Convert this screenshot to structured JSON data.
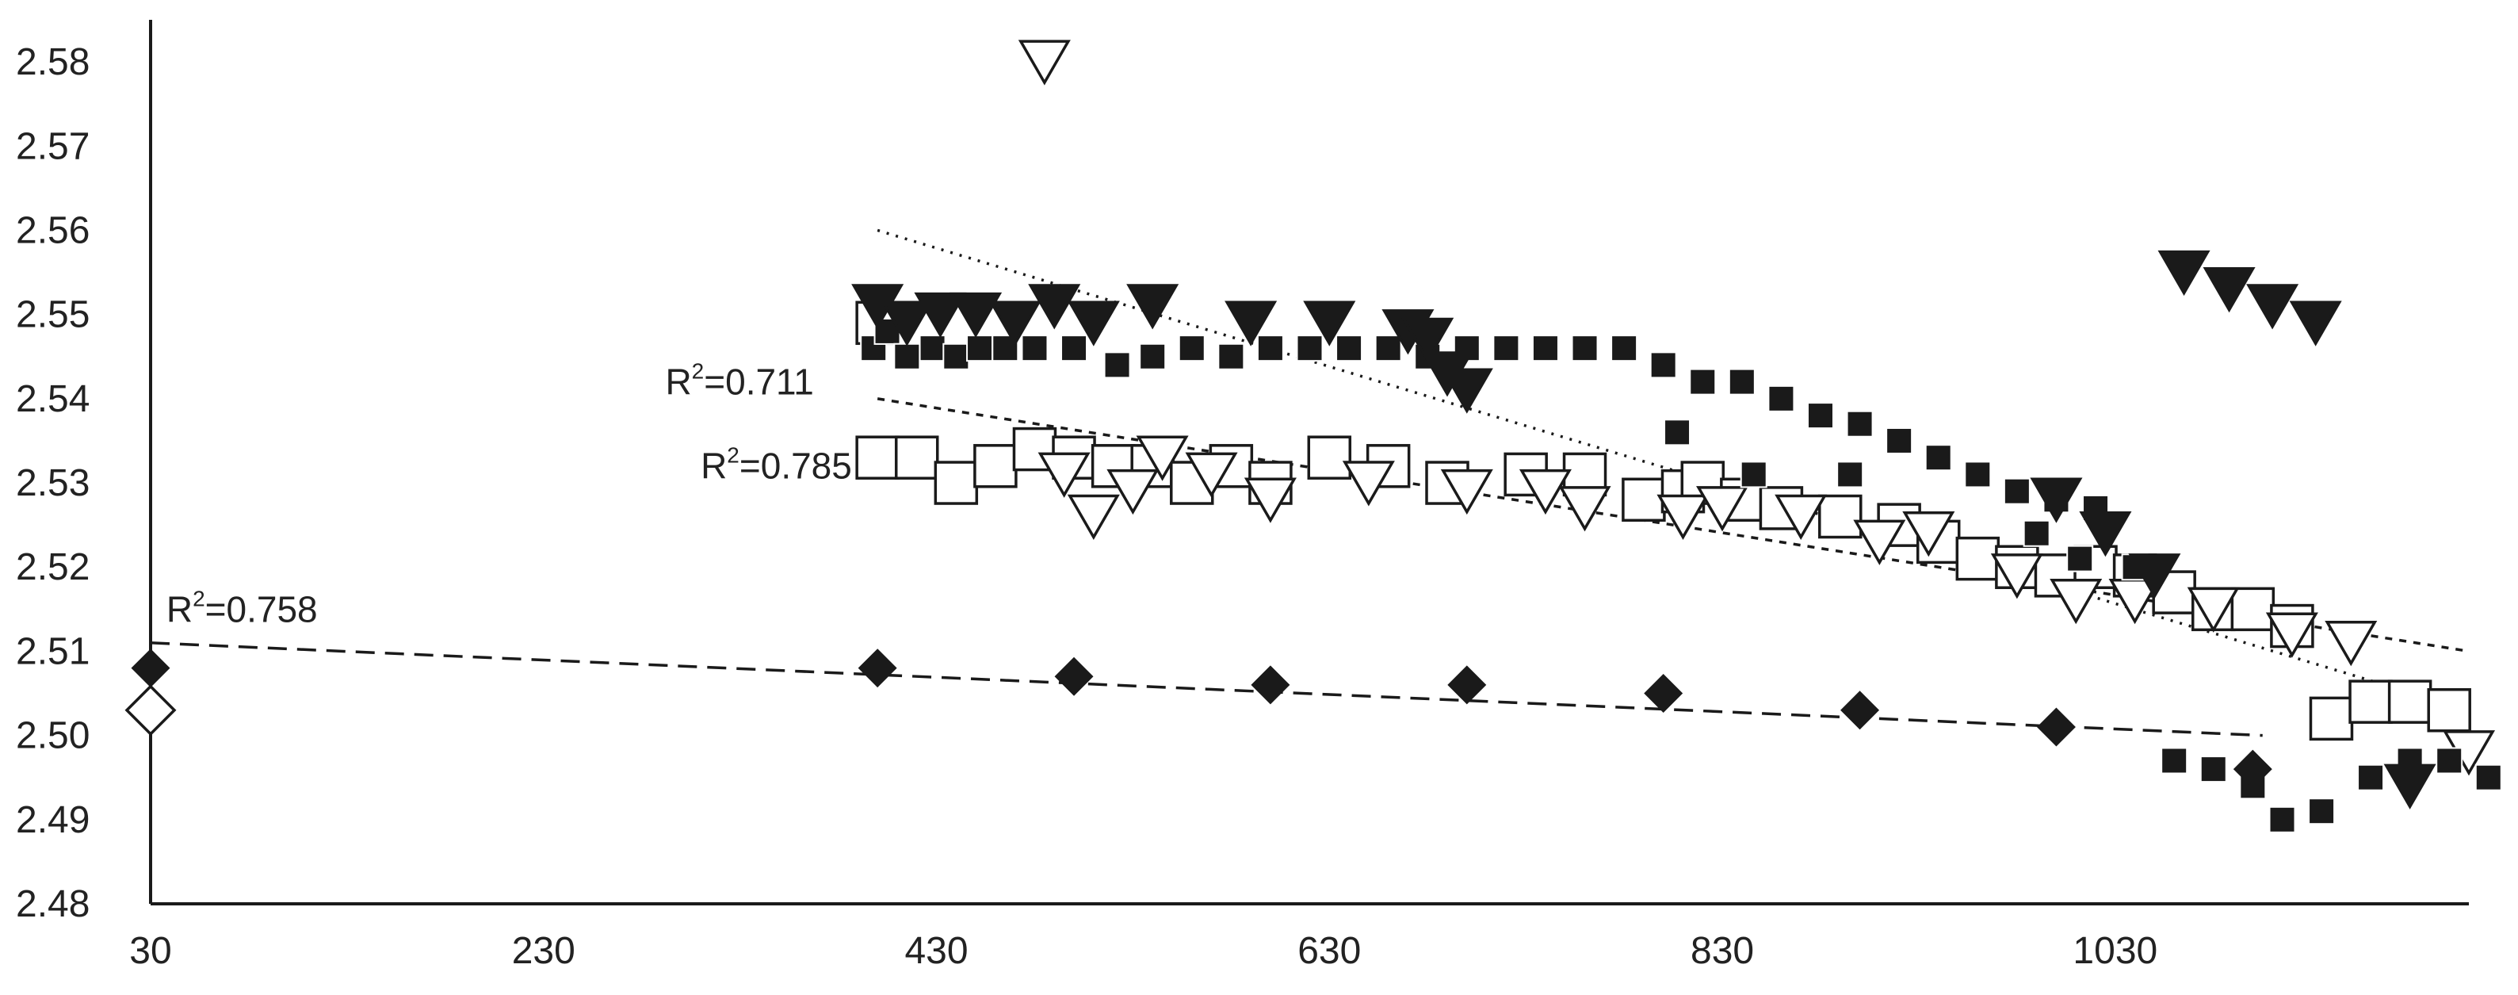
{
  "chart_data": {
    "type": "scatter",
    "title": "",
    "xlabel": "",
    "ylabel": "",
    "xlim": [
      30,
      1210
    ],
    "ylim": [
      2.48,
      2.585
    ],
    "grid": false,
    "legend": "none",
    "x_ticks": [
      "30",
      "230",
      "430",
      "630",
      "830",
      "1030"
    ],
    "y_ticks": [
      "2.48",
      "2.49",
      "2.50",
      "2.51",
      "2.52",
      "2.53",
      "2.54",
      "2.55",
      "2.56",
      "2.57",
      "2.58"
    ],
    "annotations": [
      {
        "text": "R",
        "sup": "2",
        "value": "=0.711",
        "x": 292,
        "y": 2.5405
      },
      {
        "text": "R",
        "sup": "2",
        "value": "=0.785",
        "x": 310,
        "y": 2.5305
      },
      {
        "text": "R",
        "sup": "2",
        "value": "=0.758",
        "x": 38,
        "y": 2.5135
      }
    ],
    "series": [
      {
        "marker": "filled-square",
        "color": "#1a1a1a",
        "points": [
          [
            398,
            2.546
          ],
          [
            405,
            2.548
          ],
          [
            415,
            2.545
          ],
          [
            428,
            2.546
          ],
          [
            440,
            2.545
          ],
          [
            452,
            2.546
          ],
          [
            465,
            2.546
          ],
          [
            480,
            2.546
          ],
          [
            500,
            2.546
          ],
          [
            522,
            2.544
          ],
          [
            540,
            2.545
          ],
          [
            560,
            2.546
          ],
          [
            580,
            2.545
          ],
          [
            600,
            2.546
          ],
          [
            620,
            2.546
          ],
          [
            640,
            2.546
          ],
          [
            660,
            2.546
          ],
          [
            680,
            2.545
          ],
          [
            700,
            2.546
          ],
          [
            720,
            2.546
          ],
          [
            740,
            2.546
          ],
          [
            760,
            2.546
          ],
          [
            780,
            2.546
          ],
          [
            800,
            2.544
          ],
          [
            807,
            2.536
          ],
          [
            820,
            2.542
          ],
          [
            840,
            2.542
          ],
          [
            846,
            2.531
          ],
          [
            860,
            2.54
          ],
          [
            880,
            2.538
          ],
          [
            895,
            2.531
          ],
          [
            900,
            2.537
          ],
          [
            920,
            2.535
          ],
          [
            940,
            2.533
          ],
          [
            960,
            2.531
          ],
          [
            980,
            2.529
          ],
          [
            990,
            2.524
          ],
          [
            1000,
            2.528
          ],
          [
            1012,
            2.521
          ],
          [
            1020,
            2.527
          ],
          [
            1040,
            2.52
          ],
          [
            1060,
            2.497
          ],
          [
            1080,
            2.496
          ],
          [
            1100,
            2.494
          ],
          [
            1115,
            2.49
          ],
          [
            1135,
            2.491
          ],
          [
            1160,
            2.495
          ],
          [
            1180,
            2.497
          ],
          [
            1200,
            2.497
          ],
          [
            1220,
            2.495
          ]
        ]
      },
      {
        "marker": "open-square",
        "color": "#1a1a1a",
        "points": [
          [
            400,
            2.549
          ],
          [
            400,
            2.533
          ],
          [
            420,
            2.533
          ],
          [
            440,
            2.53
          ],
          [
            460,
            2.532
          ],
          [
            480,
            2.534
          ],
          [
            500,
            2.533
          ],
          [
            520,
            2.532
          ],
          [
            540,
            2.532
          ],
          [
            560,
            2.53
          ],
          [
            580,
            2.532
          ],
          [
            600,
            2.53
          ],
          [
            630,
            2.533
          ],
          [
            660,
            2.532
          ],
          [
            690,
            2.53
          ],
          [
            730,
            2.531
          ],
          [
            760,
            2.531
          ],
          [
            790,
            2.528
          ],
          [
            810,
            2.529
          ],
          [
            820,
            2.53
          ],
          [
            840,
            2.528
          ],
          [
            860,
            2.527
          ],
          [
            890,
            2.526
          ],
          [
            920,
            2.525
          ],
          [
            940,
            2.523
          ],
          [
            960,
            2.521
          ],
          [
            980,
            2.52
          ],
          [
            1000,
            2.519
          ],
          [
            1020,
            2.52
          ],
          [
            1040,
            2.519
          ],
          [
            1060,
            2.517
          ],
          [
            1080,
            2.515
          ],
          [
            1100,
            2.515
          ],
          [
            1120,
            2.513
          ],
          [
            1140,
            2.502
          ],
          [
            1160,
            2.504
          ],
          [
            1180,
            2.504
          ],
          [
            1200,
            2.503
          ]
        ]
      },
      {
        "marker": "filled-triangle-down",
        "color": "#1a1a1a",
        "points": [
          [
            400,
            2.551
          ],
          [
            415,
            2.549
          ],
          [
            432,
            2.55
          ],
          [
            450,
            2.55
          ],
          [
            470,
            2.549
          ],
          [
            490,
            2.551
          ],
          [
            510,
            2.549
          ],
          [
            540,
            2.551
          ],
          [
            590,
            2.549
          ],
          [
            630,
            2.549
          ],
          [
            670,
            2.548
          ],
          [
            680,
            2.547
          ],
          [
            690,
            2.543
          ],
          [
            700,
            2.541
          ],
          [
            1000,
            2.528
          ],
          [
            1025,
            2.524
          ],
          [
            1050,
            2.519
          ],
          [
            1065,
            2.555
          ],
          [
            1088,
            2.553
          ],
          [
            1110,
            2.551
          ],
          [
            1132,
            2.549
          ],
          [
            1180,
            2.494
          ]
        ]
      },
      {
        "marker": "open-triangle-down",
        "color": "#1a1a1a",
        "points": [
          [
            485,
            2.58
          ],
          [
            495,
            2.531
          ],
          [
            510,
            2.526
          ],
          [
            530,
            2.529
          ],
          [
            545,
            2.533
          ],
          [
            570,
            2.531
          ],
          [
            600,
            2.528
          ],
          [
            650,
            2.53
          ],
          [
            700,
            2.529
          ],
          [
            740,
            2.529
          ],
          [
            760,
            2.527
          ],
          [
            810,
            2.526
          ],
          [
            830,
            2.527
          ],
          [
            870,
            2.526
          ],
          [
            910,
            2.523
          ],
          [
            935,
            2.524
          ],
          [
            980,
            2.519
          ],
          [
            1010,
            2.516
          ],
          [
            1040,
            2.516
          ],
          [
            1080,
            2.515
          ],
          [
            1120,
            2.512
          ],
          [
            1150,
            2.511
          ],
          [
            1210,
            2.498
          ]
        ]
      },
      {
        "marker": "filled-diamond",
        "color": "#1a1a1a",
        "points": [
          [
            30,
            2.508
          ],
          [
            400,
            2.508
          ],
          [
            500,
            2.507
          ],
          [
            600,
            2.506
          ],
          [
            700,
            2.506
          ],
          [
            800,
            2.505
          ],
          [
            900,
            2.503
          ],
          [
            1000,
            2.501
          ],
          [
            1100,
            2.496
          ]
        ]
      },
      {
        "marker": "open-diamond",
        "color": "#1a1a1a",
        "points": [
          [
            30,
            2.503
          ]
        ]
      }
    ],
    "trendlines": [
      {
        "style": "dotted",
        "r2": 0.711,
        "from": [
          400,
          2.56
        ],
        "to": [
          1210,
          2.503
        ]
      },
      {
        "style": "short-dash",
        "r2": 0.785,
        "from": [
          400,
          2.54
        ],
        "to": [
          1210,
          2.51
        ]
      },
      {
        "style": "long-dash",
        "r2": 0.758,
        "from": [
          30,
          2.511
        ],
        "to": [
          1105,
          2.5
        ]
      }
    ]
  }
}
